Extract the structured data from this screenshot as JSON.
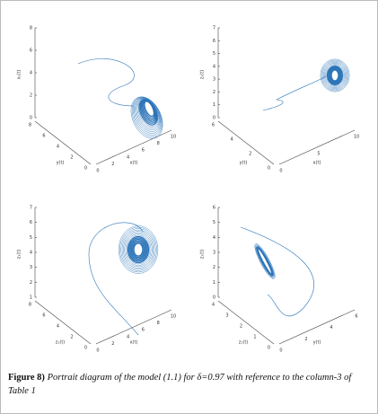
{
  "panels": [
    {
      "zlabel": "x₃(t)",
      "ylabel": "y(t)",
      "xlabel": "x(t)",
      "zticks": [
        0,
        2,
        4,
        6,
        8
      ],
      "yticks": [
        0,
        2,
        4,
        6,
        8
      ],
      "xticks": [
        0,
        2,
        4,
        6,
        8,
        10
      ]
    },
    {
      "zlabel": "z₃(t)",
      "ylabel": "y(t)",
      "xlabel": "x(t)",
      "zticks": [
        0,
        1,
        2,
        3,
        4,
        5,
        6,
        7
      ],
      "yticks": [
        0,
        2,
        4,
        6
      ],
      "xticks": [
        0,
        5,
        10
      ]
    },
    {
      "zlabel": "z₃(t)",
      "ylabel": "z₁(t)",
      "xlabel": "x(t)",
      "zticks": [
        1,
        2,
        3,
        4,
        5,
        6,
        7
      ],
      "yticks": [
        0,
        2,
        4,
        6,
        8
      ],
      "xticks": [
        0,
        2,
        4,
        6,
        8,
        10
      ]
    },
    {
      "zlabel": "z₃(t)",
      "ylabel": "z₁(t)",
      "xlabel": "y(t)",
      "zticks": [
        0,
        1,
        2,
        3,
        4,
        5,
        6
      ],
      "yticks": [
        0,
        1,
        2,
        3,
        4
      ],
      "xticks": [
        0,
        2,
        4,
        6
      ]
    }
  ],
  "caption": {
    "label": "Figure 8)",
    "text": "Portrait diagram of the model (1.1) for δ=0.97 with reference to the column-3 of Table 1"
  }
}
